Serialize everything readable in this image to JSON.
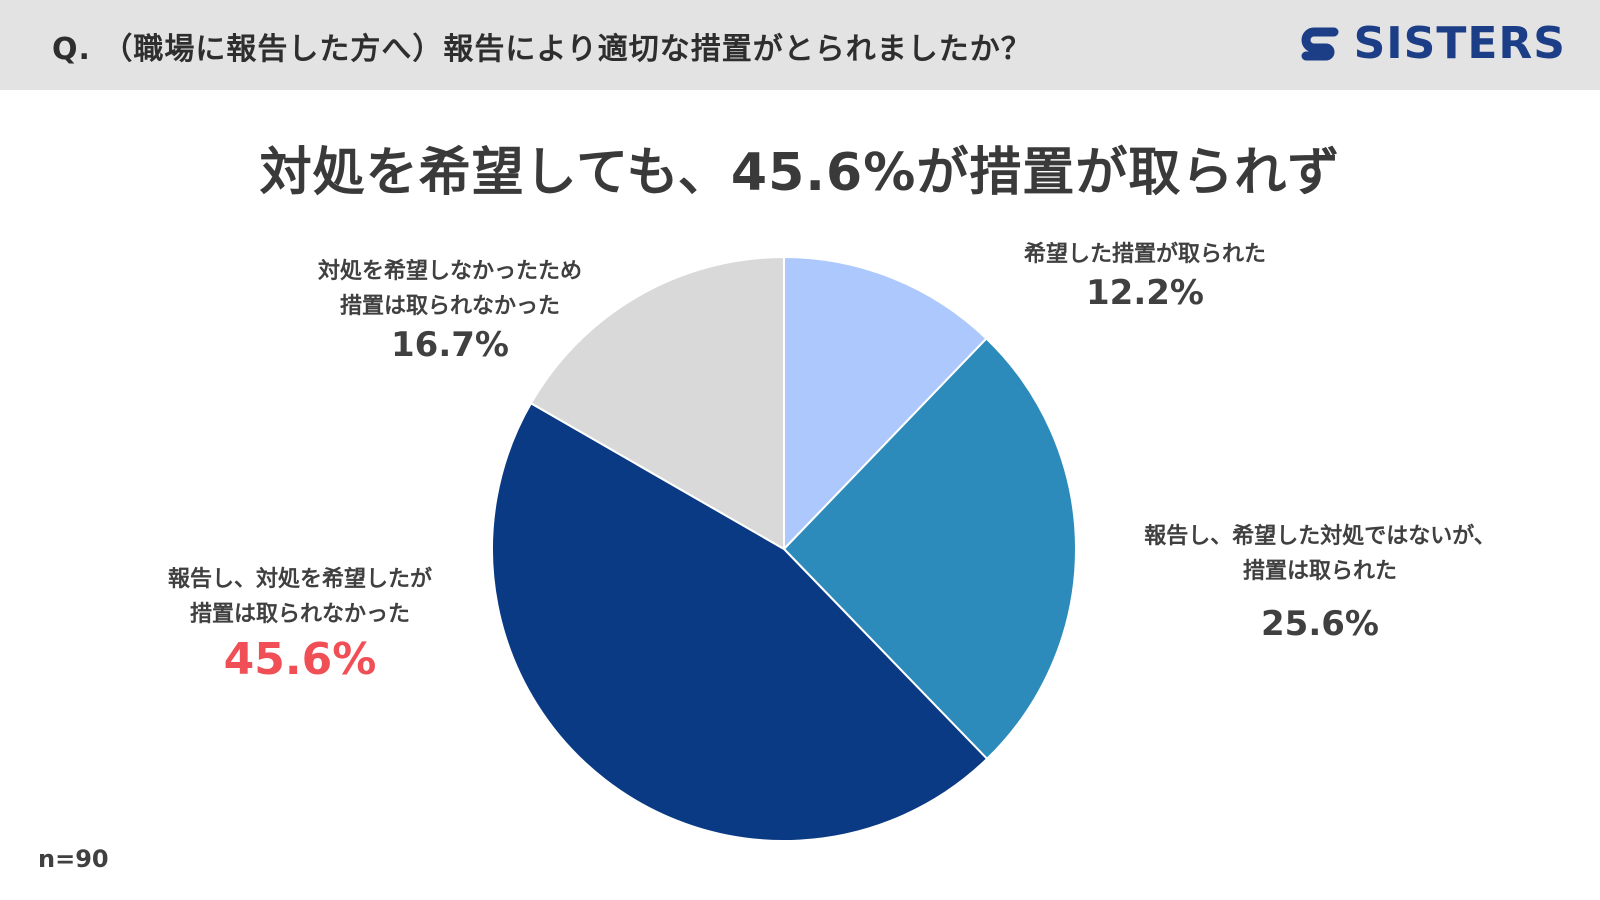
{
  "header": {
    "question": "Q. （職場に報告した方へ）報告により適切な措置がとられましたか？",
    "logo_text": "SISTERS",
    "logo_icon": "sisters-s-mark",
    "background": "#e3e3e3"
  },
  "headline": "対処を希望しても、45.6%が措置が取られず",
  "sample_size": "n=90",
  "chart_data": {
    "type": "pie",
    "title": "",
    "start_angle_deg": 0,
    "direction": "clockwise",
    "slices": [
      {
        "label_lines": [
          "希望した措置が取られた"
        ],
        "value": 12.2,
        "percent": "12.2%",
        "color": "#adc8fd"
      },
      {
        "label_lines": [
          "報告し、希望した対処ではないが、",
          "措置は取られた"
        ],
        "value": 25.6,
        "percent": "25.6%",
        "color": "#2c8bba"
      },
      {
        "label_lines": [
          "報告し、対処を希望したが",
          "措置は取られなかった"
        ],
        "value": 45.6,
        "percent": "45.6%",
        "color": "#0b3a84",
        "highlight_color": "#f04f55"
      },
      {
        "label_lines": [
          "対処を希望しなかったため",
          "措置は取られなかった"
        ],
        "value": 16.7,
        "percent": "16.7%",
        "color": "#d9d9d9"
      }
    ]
  }
}
